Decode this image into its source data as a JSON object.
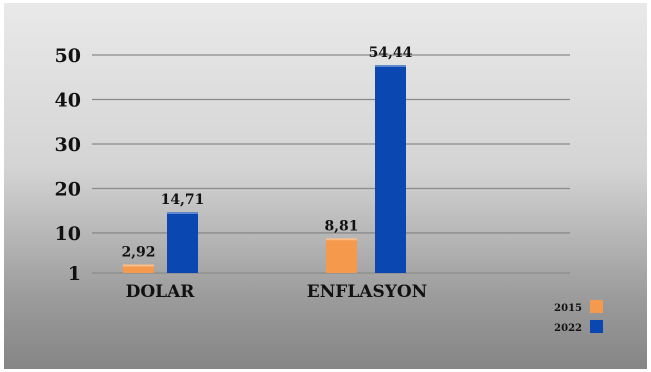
{
  "chart_data": {
    "type": "bar",
    "categories": [
      "DOLAR",
      "ENFLASYON"
    ],
    "series": [
      {
        "name": "2015",
        "values": [
          2.92,
          8.81
        ],
        "labels": [
          "2,92",
          "8,81"
        ],
        "color": "#f59a4c"
      },
      {
        "name": "2022",
        "values": [
          14.71,
          54.44
        ],
        "labels": [
          "14,71",
          "54,44"
        ],
        "color": "#0a47b0"
      }
    ],
    "yticks": [
      {
        "value": 1,
        "label": "1"
      },
      {
        "value": 10,
        "label": "10"
      },
      {
        "value": 20,
        "label": "20"
      },
      {
        "value": 30,
        "label": "30"
      },
      {
        "value": 40,
        "label": "40"
      },
      {
        "value": 50,
        "label": "50"
      }
    ],
    "ylim": [
      1,
      50
    ],
    "grid": true,
    "legend_position": "bottom-right",
    "title": "",
    "xlabel": "",
    "ylabel": ""
  }
}
